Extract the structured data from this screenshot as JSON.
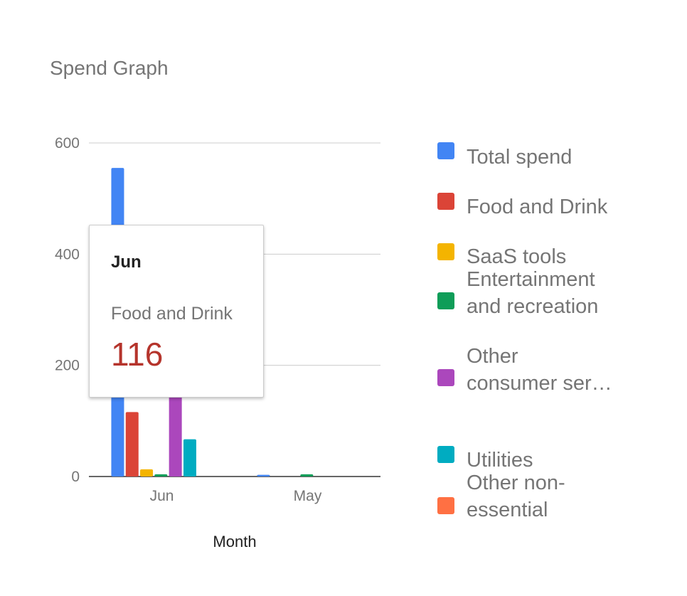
{
  "chart_data": {
    "type": "bar",
    "title": "Spend Graph",
    "xlabel": "Month",
    "ylabel": "",
    "ylim": [
      0,
      600
    ],
    "yticks": [
      0,
      200,
      400,
      600
    ],
    "grid": true,
    "legend_position": "right",
    "categories": [
      "Jun",
      "May"
    ],
    "series": [
      {
        "name": "Total spend",
        "color": "#4285f4",
        "values": [
          555,
          3
        ]
      },
      {
        "name": "Food and Drink",
        "color": "#db4437",
        "values": [
          116,
          0
        ]
      },
      {
        "name": "SaaS tools",
        "color": "#f4b400",
        "values": [
          13,
          0
        ]
      },
      {
        "name": "Entertainment and recreation",
        "color": "#0f9d58",
        "values": [
          4,
          4
        ]
      },
      {
        "name": "Other consumer ser…",
        "color": "#ab47bc",
        "values": [
          145,
          0
        ]
      },
      {
        "name": "Utilities",
        "color": "#00acc1",
        "values": [
          67,
          0
        ]
      },
      {
        "name": "Other non-essential",
        "color": "#ff7043",
        "values": [
          0,
          0
        ]
      }
    ]
  },
  "tooltip": {
    "category": "Jun",
    "series": "Food and Drink",
    "value": "116",
    "value_color": "#b5342c"
  }
}
